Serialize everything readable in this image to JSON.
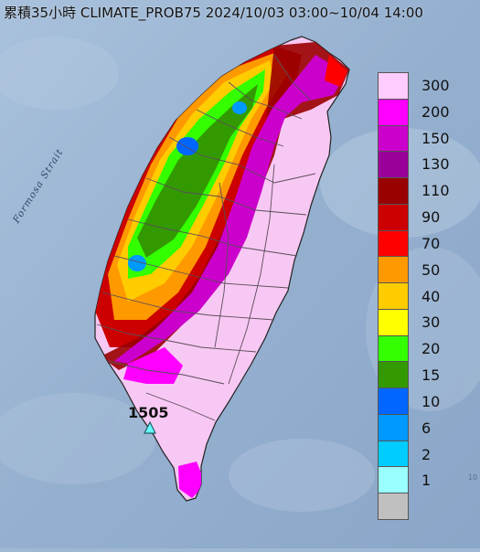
{
  "map": {
    "title": "累積35小時 CLIMATE_PROB75 2024/10/03 03:00~10/04 14:00",
    "strait_label": "Formosa Strait",
    "peak_value": "1505",
    "edge_mark": "10",
    "colors": {
      "sea": "#9fb8d4",
      "land_base": "#f8c8f4",
      "county_line": "#6b5a6b"
    }
  },
  "legend": {
    "items": [
      {
        "label": "300",
        "color": "#ffccff"
      },
      {
        "label": "200",
        "color": "#ff00ff"
      },
      {
        "label": "150",
        "color": "#cc00cc"
      },
      {
        "label": "130",
        "color": "#990099"
      },
      {
        "label": "110",
        "color": "#990000"
      },
      {
        "label": "90",
        "color": "#cc0000"
      },
      {
        "label": "70",
        "color": "#ff0000"
      },
      {
        "label": "50",
        "color": "#ff9900"
      },
      {
        "label": "40",
        "color": "#ffcc00"
      },
      {
        "label": "30",
        "color": "#ffff00"
      },
      {
        "label": "20",
        "color": "#33ff00"
      },
      {
        "label": "15",
        "color": "#339900"
      },
      {
        "label": "10",
        "color": "#0066ff"
      },
      {
        "label": "6",
        "color": "#0099ff"
      },
      {
        "label": "2",
        "color": "#00ccff"
      },
      {
        "label": "1",
        "color": "#99ffff"
      },
      {
        "label": "",
        "color": "#c0c0c0"
      }
    ]
  }
}
